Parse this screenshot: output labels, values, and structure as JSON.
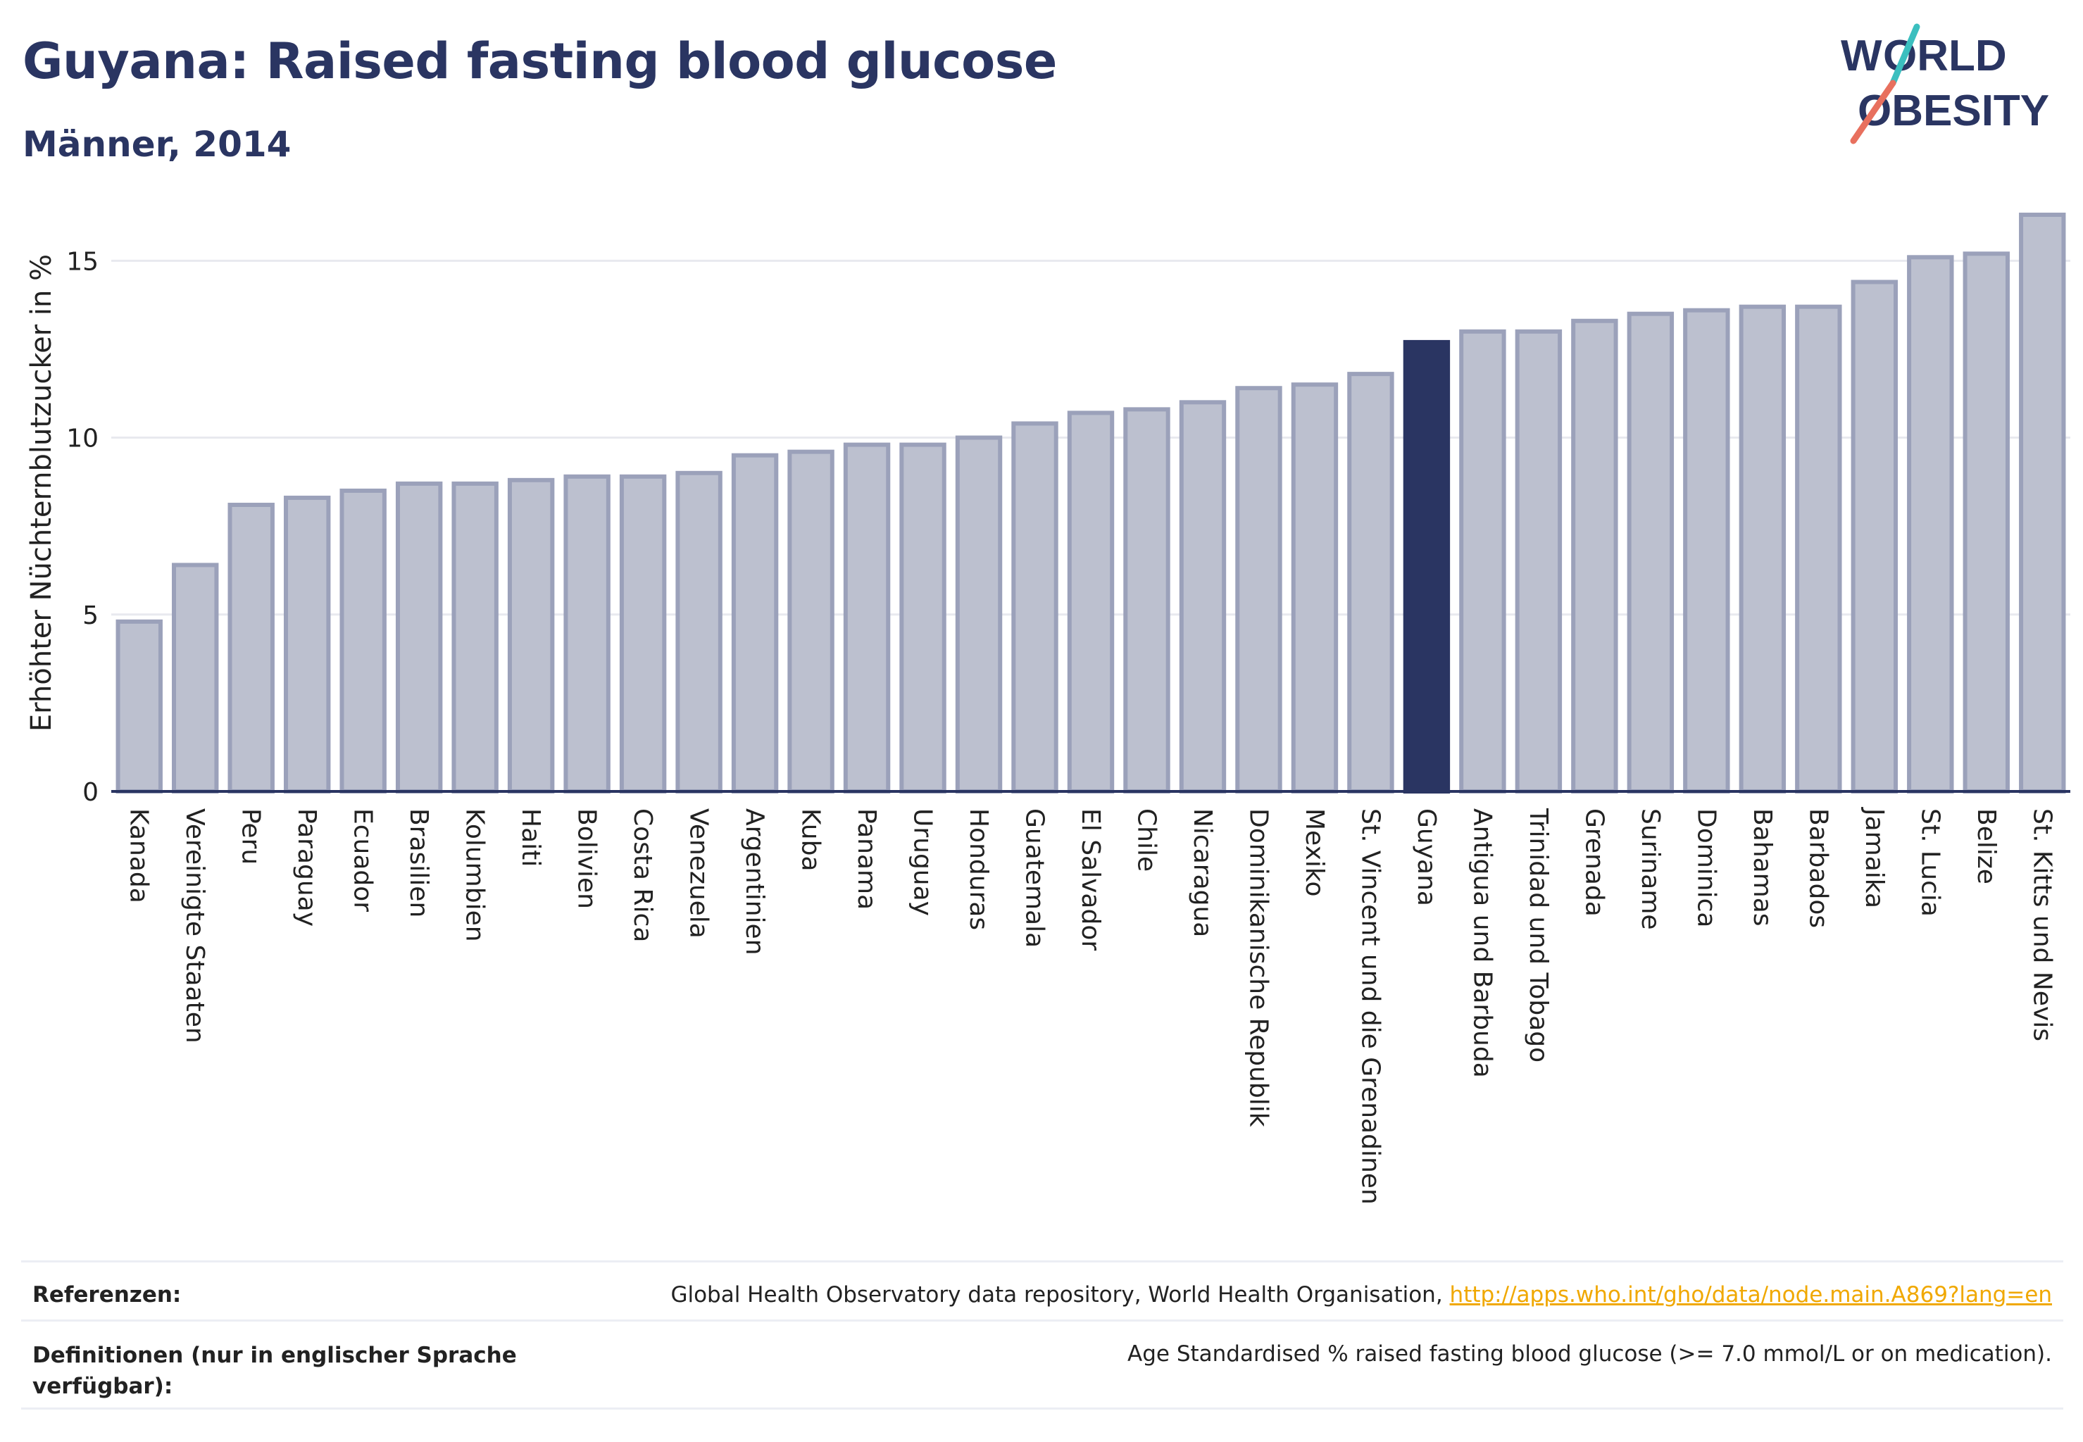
{
  "header": {
    "title": "Guyana: Raised fasting blood glucose",
    "subtitle": "Männer, 2014"
  },
  "logo": {
    "line1": "WORLD",
    "line2": "OBESITY"
  },
  "colors": {
    "bar": "#bcc0cf",
    "bar_edge": "#9ba1ba",
    "highlight": "#2a3562",
    "grid": "#e8e9ef",
    "axis": "#2a3562",
    "link": "#f0a800"
  },
  "chart_data": {
    "type": "bar",
    "ylabel": "Erhöhter Nüchternblutzucker in %",
    "ylim": [
      0,
      16.4
    ],
    "yticks": [
      0,
      5,
      10,
      15
    ],
    "highlight": "Guyana",
    "categories": [
      "Kanada",
      "Vereinigte Staaten",
      "Peru",
      "Paraguay",
      "Ecuador",
      "Brasilien",
      "Kolumbien",
      "Haiti",
      "Bolivien",
      "Costa Rica",
      "Venezuela",
      "Argentinien",
      "Kuba",
      "Panama",
      "Uruguay",
      "Honduras",
      "Guatemala",
      "El Salvador",
      "Chile",
      "Nicaragua",
      "Dominikanische Republik",
      "Mexiko",
      "St. Vincent und die Grenadinen",
      "Guyana",
      "Antigua und Barbuda",
      "Trinidad und Tobago",
      "Grenada",
      "Suriname",
      "Dominica",
      "Bahamas",
      "Barbados",
      "Jamaika",
      "St. Lucia",
      "Belize",
      "St. Kitts und Nevis"
    ],
    "values": [
      4.8,
      6.4,
      8.1,
      8.3,
      8.5,
      8.7,
      8.7,
      8.8,
      8.9,
      8.9,
      9.0,
      9.5,
      9.6,
      9.8,
      9.8,
      10.0,
      10.4,
      10.7,
      10.8,
      11.0,
      11.4,
      11.5,
      11.8,
      12.7,
      13.0,
      13.0,
      13.3,
      13.5,
      13.6,
      13.7,
      13.7,
      14.4,
      15.1,
      15.2,
      16.3
    ]
  },
  "references": {
    "ref_label": "Referenzen:",
    "ref_text": "Global Health Observatory data repository, World Health Organisation, ",
    "ref_link": "http://apps.who.int/gho/data/node.main.A869?lang=en",
    "def_label_line1": "Definitionen (nur in englischer Sprache",
    "def_label_line2": "verfügbar):",
    "def_text": "Age Standardised % raised fasting blood glucose (>= 7.0 mmol/L or on medication)."
  }
}
